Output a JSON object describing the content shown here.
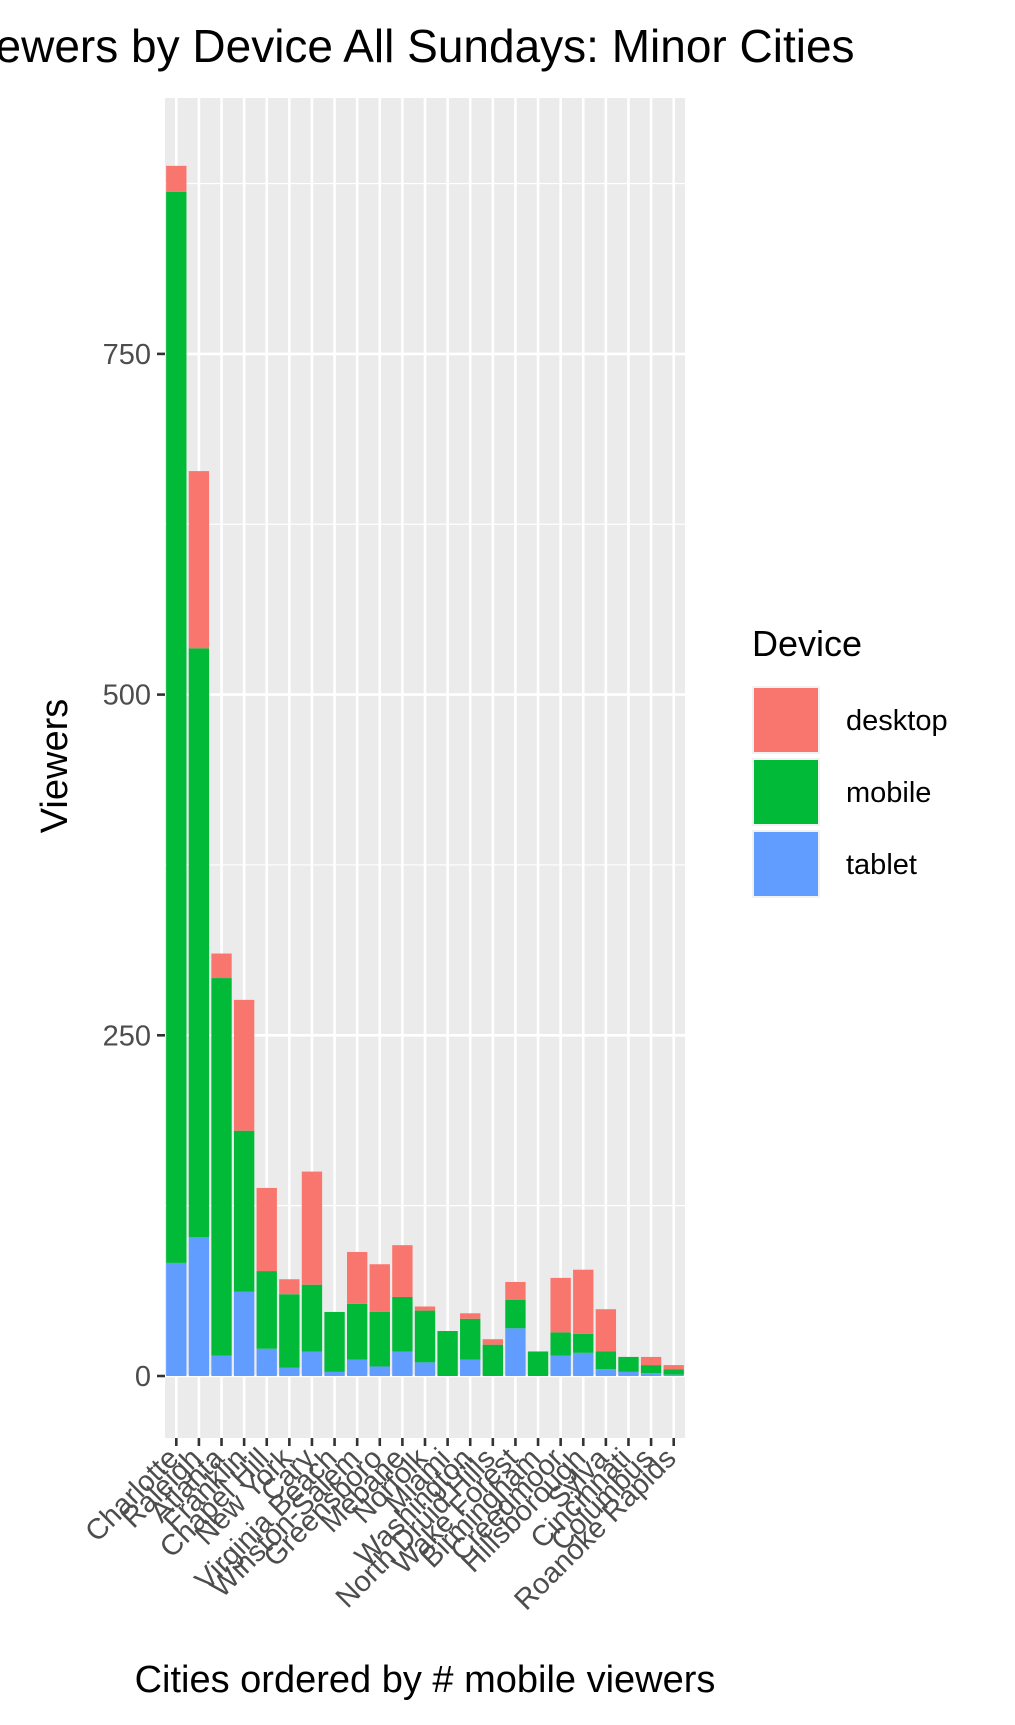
{
  "chart_data": {
    "type": "bar",
    "stacked": true,
    "title": "Viewers by Device All Sundays: Minor Cities",
    "xlabel": "Cities ordered by # mobile viewers",
    "ylabel": "Viewers",
    "ylim": [
      -40,
      900
    ],
    "yticks": [
      0,
      250,
      500,
      750
    ],
    "grid": true,
    "legend": {
      "title": "Device",
      "placement": "right"
    },
    "categories": [
      "Charlotte",
      "Raleigh",
      "Atlanta",
      "Franklin",
      "Chapel Hill",
      "New York",
      "Cary",
      "Virginia Beach",
      "Winston-Salem",
      "Greensboro",
      "Mebane",
      "Norfolk",
      "Miami",
      "Washington",
      "North Druid Hills",
      "Wake Forest",
      "Birmingham",
      "Creedmoor",
      "Hillsborough",
      "Sylva",
      "Cincinnati",
      "Columbus",
      "Roanoke Rapids"
    ],
    "series": [
      {
        "name": "tablet",
        "color": "#619CFF",
        "values": [
          83,
          102,
          15,
          62,
          20,
          6,
          18,
          3,
          12,
          7,
          18,
          10,
          0,
          12,
          0,
          35,
          0,
          15,
          17,
          5,
          3,
          2,
          1
        ]
      },
      {
        "name": "mobile",
        "color": "#00BA38",
        "values": [
          786,
          432,
          277,
          118,
          57,
          54,
          49,
          44,
          41,
          40,
          40,
          38,
          33,
          30,
          23,
          21,
          18,
          17,
          14,
          13,
          11,
          6,
          4
        ]
      },
      {
        "name": "desktop",
        "color": "#F8766D",
        "values": [
          19,
          130,
          18,
          96,
          61,
          11,
          83,
          0,
          38,
          35,
          38,
          3,
          0,
          4,
          4,
          13,
          0,
          40,
          47,
          31,
          0,
          6,
          3
        ]
      }
    ]
  }
}
